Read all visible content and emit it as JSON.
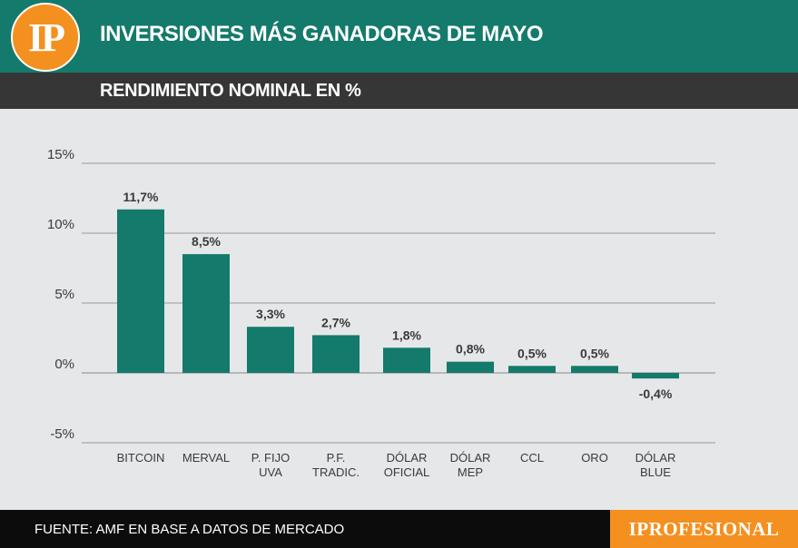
{
  "header": {
    "logo_text": "IP",
    "title": "INVERSIONES MÁS GANADORAS DE MAYO",
    "subtitle": "RENDIMIENTO NOMINAL EN %"
  },
  "footer": {
    "source": "FUENTE: AMF EN BASE A DATOS DE MERCADO",
    "brand": "IPROFESIONAL"
  },
  "colors": {
    "bar": "#147a6b",
    "header": "#147a6b",
    "subheader": "#363636",
    "plot_bg": "#e6e7e8",
    "accent": "#f4901f",
    "grid": "#9a9a9a"
  },
  "chart_data": {
    "type": "bar",
    "title": "INVERSIONES MÁS GANADORAS DE MAYO",
    "ylabel": "RENDIMIENTO NOMINAL EN %",
    "xlabel": "",
    "categories": [
      [
        "BITCOIN"
      ],
      [
        "MERVAL"
      ],
      [
        "P. FIJO",
        "UVA"
      ],
      [
        "P.F.",
        "TRADIC."
      ],
      [
        "DÓLAR",
        "OFICIAL"
      ],
      [
        "DÓLAR",
        "MEP"
      ],
      [
        "CCL"
      ],
      [
        "ORO"
      ],
      [
        "DÓLAR",
        "BLUE"
      ]
    ],
    "values": [
      11.7,
      8.5,
      3.3,
      2.7,
      1.8,
      0.8,
      0.5,
      0.5,
      -0.4
    ],
    "data_labels": [
      "11,7%",
      "8,5%",
      "3,3%",
      "2,7%",
      "1,8%",
      "0,8%",
      "0,5%",
      "0,5%",
      "-0,4%"
    ],
    "yticks": [
      -5,
      0,
      5,
      10,
      15
    ],
    "ytick_labels": [
      "-5%",
      "0%",
      "5%",
      "10%",
      "15%"
    ],
    "ylim": [
      -5,
      15
    ],
    "grid": true
  }
}
